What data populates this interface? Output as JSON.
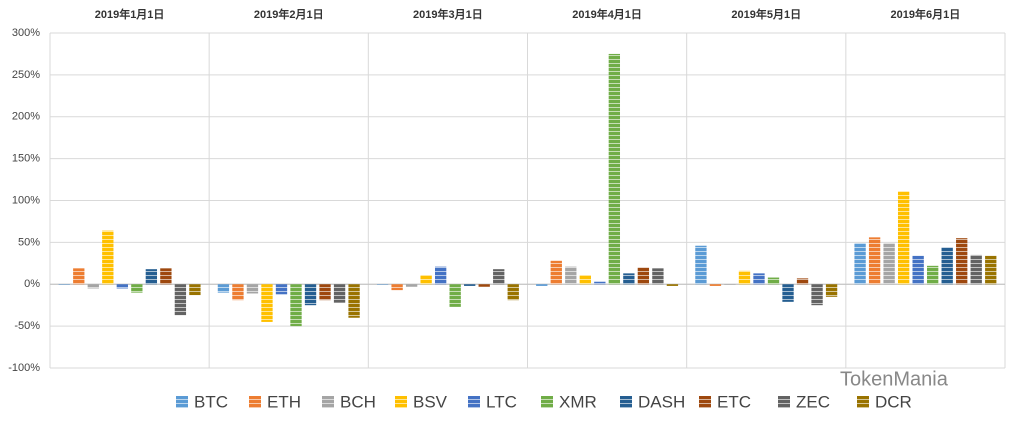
{
  "chart_data": {
    "type": "bar",
    "categories": [
      "2019年1月1日",
      "2019年2月1日",
      "2019年3月1日",
      "2019年4月1日",
      "2019年5月1日",
      "2019年6月1日"
    ],
    "series": [
      {
        "name": "BTC",
        "color": "#5b9bd5",
        "values": [
          0,
          -10,
          0,
          -2,
          46,
          49
        ]
      },
      {
        "name": "ETH",
        "color": "#ed7d31",
        "values": [
          19,
          -19,
          -7,
          28,
          -2,
          56
        ]
      },
      {
        "name": "BCH",
        "color": "#a5a5a5",
        "values": [
          -5,
          -11,
          -3,
          21,
          0,
          49
        ]
      },
      {
        "name": "BSV",
        "color": "#ffc000",
        "values": [
          64,
          -45,
          11,
          11,
          16,
          111
        ]
      },
      {
        "name": "LTC",
        "color": "#4472c4",
        "values": [
          -5,
          -12,
          21,
          3,
          13,
          34
        ]
      },
      {
        "name": "XMR",
        "color": "#70ad47",
        "values": [
          -10,
          -50,
          -27,
          275,
          8,
          22
        ]
      },
      {
        "name": "DASH",
        "color": "#255e91",
        "values": [
          18,
          -25,
          -2,
          13,
          -21,
          44
        ]
      },
      {
        "name": "ETC",
        "color": "#9e480e",
        "values": [
          19,
          -19,
          -3,
          20,
          7,
          55
        ]
      },
      {
        "name": "ZEC",
        "color": "#636363",
        "values": [
          -37,
          -22,
          18,
          19,
          -25,
          35
        ]
      },
      {
        "name": "DCR",
        "color": "#997300",
        "values": [
          -13,
          -40,
          -19,
          -2,
          -15,
          34
        ]
      }
    ],
    "ylim": [
      -100,
      300
    ],
    "yticks": [
      {
        "value": -100,
        "label": "-100%"
      },
      {
        "value": -50,
        "label": "-50%"
      },
      {
        "value": 0,
        "label": "0%"
      },
      {
        "value": 50,
        "label": "50%"
      },
      {
        "value": 100,
        "label": "100%"
      },
      {
        "value": 150,
        "label": "150%"
      },
      {
        "value": 200,
        "label": "200%"
      },
      {
        "value": 250,
        "label": "250%"
      },
      {
        "value": 300,
        "label": "300%"
      }
    ],
    "grid": true,
    "watermark": "TokenMania"
  }
}
